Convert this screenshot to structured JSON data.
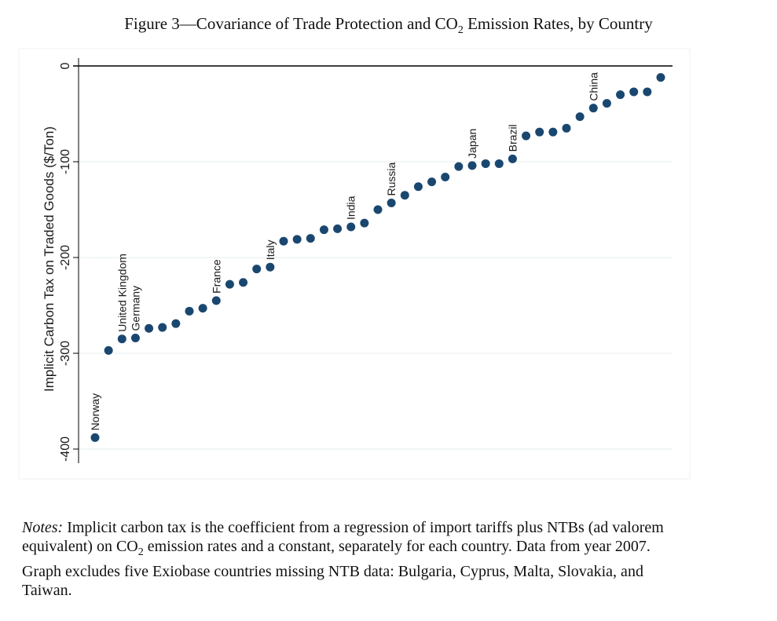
{
  "figure": {
    "title_prefix": "Figure 3—Covariance of Trade Protection and CO",
    "title_sub": "2",
    "title_suffix": " Emission Rates, by Country"
  },
  "chart_data": {
    "type": "scatter",
    "ylabel": "Implicit Carbon Tax on Traded Goods ($/Ton)",
    "xlabel": "",
    "ylim": [
      -400,
      0
    ],
    "yticks": [
      0,
      -100,
      -200,
      -300,
      -400
    ],
    "grid": true,
    "points": [
      {
        "rank": 1,
        "value": -388,
        "label": "Norway"
      },
      {
        "rank": 2,
        "value": -297,
        "label": ""
      },
      {
        "rank": 3,
        "value": -285,
        "label": "United Kingdom"
      },
      {
        "rank": 4,
        "value": -284,
        "label": "Germany"
      },
      {
        "rank": 5,
        "value": -274,
        "label": ""
      },
      {
        "rank": 6,
        "value": -273,
        "label": ""
      },
      {
        "rank": 7,
        "value": -269,
        "label": ""
      },
      {
        "rank": 8,
        "value": -256,
        "label": ""
      },
      {
        "rank": 9,
        "value": -253,
        "label": ""
      },
      {
        "rank": 10,
        "value": -245,
        "label": "France"
      },
      {
        "rank": 11,
        "value": -228,
        "label": ""
      },
      {
        "rank": 12,
        "value": -226,
        "label": ""
      },
      {
        "rank": 13,
        "value": -212,
        "label": ""
      },
      {
        "rank": 14,
        "value": -210,
        "label": "Italy"
      },
      {
        "rank": 15,
        "value": -183,
        "label": ""
      },
      {
        "rank": 16,
        "value": -181,
        "label": ""
      },
      {
        "rank": 17,
        "value": -180,
        "label": ""
      },
      {
        "rank": 18,
        "value": -171,
        "label": ""
      },
      {
        "rank": 19,
        "value": -170,
        "label": ""
      },
      {
        "rank": 20,
        "value": -168,
        "label": "India"
      },
      {
        "rank": 21,
        "value": -164,
        "label": ""
      },
      {
        "rank": 22,
        "value": -150,
        "label": ""
      },
      {
        "rank": 23,
        "value": -143,
        "label": "Russia"
      },
      {
        "rank": 24,
        "value": -135,
        "label": ""
      },
      {
        "rank": 25,
        "value": -126,
        "label": ""
      },
      {
        "rank": 26,
        "value": -121,
        "label": ""
      },
      {
        "rank": 27,
        "value": -116,
        "label": ""
      },
      {
        "rank": 28,
        "value": -105,
        "label": ""
      },
      {
        "rank": 29,
        "value": -104,
        "label": "Japan"
      },
      {
        "rank": 30,
        "value": -102,
        "label": ""
      },
      {
        "rank": 31,
        "value": -102,
        "label": ""
      },
      {
        "rank": 32,
        "value": -97,
        "label": "Brazil"
      },
      {
        "rank": 33,
        "value": -73,
        "label": ""
      },
      {
        "rank": 34,
        "value": -69,
        "label": ""
      },
      {
        "rank": 35,
        "value": -69,
        "label": ""
      },
      {
        "rank": 36,
        "value": -65,
        "label": ""
      },
      {
        "rank": 37,
        "value": -53,
        "label": ""
      },
      {
        "rank": 38,
        "value": -44,
        "label": "China"
      },
      {
        "rank": 39,
        "value": -39,
        "label": ""
      },
      {
        "rank": 40,
        "value": -30,
        "label": ""
      },
      {
        "rank": 41,
        "value": -27,
        "label": ""
      },
      {
        "rank": 42,
        "value": -27,
        "label": ""
      },
      {
        "rank": 43,
        "value": -12,
        "label": ""
      }
    ],
    "colors": {
      "marker": "#1a476f",
      "zero_line": "#000000",
      "grid": "#eaf0f2",
      "text": "#1a1a1a"
    }
  },
  "notes": {
    "label": "Notes:",
    "line1": "Implicit carbon tax is the coefficient from a regression of import tariffs plus NTBs (ad valorem",
    "line2_pre": "equivalent) on CO",
    "line2_sub": "2",
    "line2_post": " emission rates and a constant, separately for each country. Data from year 2007.",
    "line3": "Graph excludes five Exiobase countries missing NTB data: Bulgaria, Cyprus, Malta, Slovakia, and",
    "line4": "Taiwan."
  }
}
